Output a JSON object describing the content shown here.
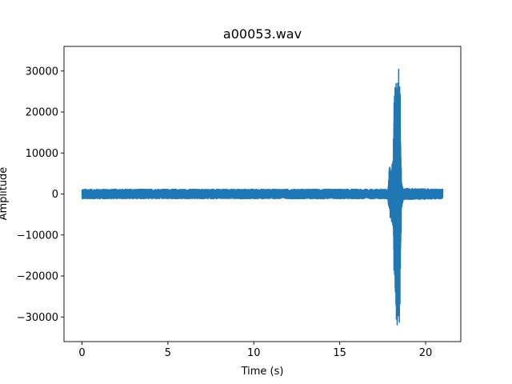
{
  "chart_data": {
    "type": "line",
    "title": "a00053.wav",
    "xlabel": "Time (s)",
    "ylabel": "Amplitude",
    "xlim": [
      -1.05,
      22.05
    ],
    "ylim": [
      -36000,
      36000
    ],
    "xticks": [
      0,
      5,
      10,
      15,
      20
    ],
    "xtick_labels": [
      "0",
      "5",
      "10",
      "15",
      "20"
    ],
    "yticks": [
      -30000,
      -20000,
      -10000,
      0,
      10000,
      20000,
      30000
    ],
    "ytick_labels": [
      "−30000",
      "−20000",
      "−10000",
      "0",
      "10000",
      "20000",
      "30000"
    ],
    "grid": false,
    "legend": "none",
    "color": "#1f77b4",
    "series": [
      {
        "duration_s": 21.0,
        "baseline_amplitude": 1200,
        "envelope": [
          {
            "x": 0.0,
            "min": -1300,
            "max": 1300
          },
          {
            "x": 17.8,
            "min": -1300,
            "max": 1300
          },
          {
            "x": 17.9,
            "min": -5500,
            "max": 7500
          },
          {
            "x": 18.0,
            "min": -6500,
            "max": 6000
          },
          {
            "x": 18.1,
            "min": -8000,
            "max": 9000
          },
          {
            "x": 18.15,
            "min": -20000,
            "max": 22000
          },
          {
            "x": 18.25,
            "min": -25000,
            "max": 30000
          },
          {
            "x": 18.3,
            "min": -32500,
            "max": 26000
          },
          {
            "x": 18.4,
            "min": -32800,
            "max": 32800
          },
          {
            "x": 18.5,
            "min": -32000,
            "max": 32700
          },
          {
            "x": 18.6,
            "min": -4000,
            "max": 3500
          },
          {
            "x": 18.7,
            "min": -1500,
            "max": 1500
          },
          {
            "x": 21.0,
            "min": -1300,
            "max": 1300
          }
        ]
      }
    ]
  }
}
